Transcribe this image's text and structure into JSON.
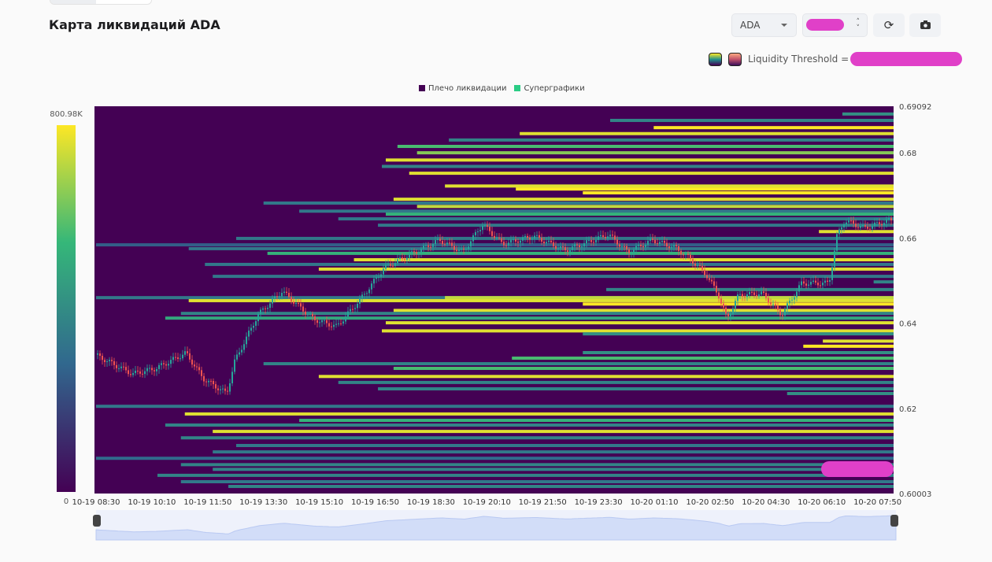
{
  "header": {
    "title": "Карта ликвидаций ADA"
  },
  "controls": {
    "symbol": "ADA",
    "refresh_icon": "refresh-icon",
    "camera_icon": "camera-icon"
  },
  "threshold": {
    "label": "Liquidity Threshold ="
  },
  "legend": [
    {
      "label": "Плечо ликвидации",
      "color": "#440154"
    },
    {
      "label": "Суперграфики",
      "color": "#2bcc85"
    }
  ],
  "colors": {
    "background": "#440154",
    "scale": [
      "#440154",
      "#31688e",
      "#35b779",
      "#fde725"
    ],
    "up": "#26a69a",
    "down": "#ef5350"
  },
  "chart_data": {
    "type": "heatmap",
    "title": "",
    "colorbar": {
      "min_label": "0",
      "max_label": "800.98K"
    },
    "ylim": [
      0.60003,
      0.69092
    ],
    "yticks": [
      "0.69092",
      "0.68",
      "0.66",
      "0.64",
      "0.62",
      "0.60003"
    ],
    "xticks": [
      "10-19 08:30",
      "10-19 10:10",
      "10-19 11:50",
      "10-19 13:30",
      "10-19 15:10",
      "10-19 16:50",
      "10-19 18:30",
      "10-19 20:10",
      "10-19 21:50",
      "10-19 23:30",
      "10-20 01:10",
      "10-20 02:50",
      "10-20 04:30",
      "10-20 06:10",
      "10-20 07:50"
    ],
    "liquidation_levels": [
      [
        0.6891,
        "10-20 06:47",
        0.5
      ],
      [
        0.6876,
        "10-19 23:51",
        0.45
      ],
      [
        0.6859,
        "10-20 01:09",
        1
      ],
      [
        0.6845,
        "10-19 21:09",
        0.95
      ],
      [
        0.683,
        "10-19 19:02",
        0.45
      ],
      [
        0.6815,
        "10-19 17:30",
        0.7
      ],
      [
        0.68,
        "10-19 18:05",
        0.8
      ],
      [
        0.6783,
        "10-19 17:09",
        0.95
      ],
      [
        0.6768,
        "10-19 17:02",
        0.45
      ],
      [
        0.6752,
        "10-19 17:51",
        0.95
      ],
      [
        0.6722,
        "10-19 18:55",
        0.95
      ],
      [
        0.6715,
        "10-19 21:02",
        1
      ],
      [
        0.6706,
        "10-19 23:02",
        1
      ],
      [
        0.6691,
        "10-19 17:23",
        0.95
      ],
      [
        0.6682,
        "10-19 13:30",
        0.4
      ],
      [
        0.6674,
        "10-19 18:05",
        0.9
      ],
      [
        0.6663,
        "10-19 14:34",
        0.4
      ],
      [
        0.6656,
        "10-19 17:09",
        0.65
      ],
      [
        0.6645,
        "10-19 15:44",
        0.4
      ],
      [
        0.663,
        "10-19 16:55",
        0.4
      ],
      [
        0.6615,
        "10-20 06:05",
        0.95
      ],
      [
        0.6599,
        "10-19 12:41",
        0.4
      ],
      [
        0.6584,
        "10-19 08:30",
        0.3
      ],
      [
        0.6575,
        "10-19 11:16",
        0.4
      ],
      [
        0.6564,
        "10-19 13:37",
        0.65
      ],
      [
        0.6549,
        "10-19 16:12",
        0.95
      ],
      [
        0.6538,
        "10-19 11:45",
        0.4
      ],
      [
        0.6527,
        "10-19 15:09",
        0.95
      ],
      [
        0.651,
        "10-19 11:59",
        0.4
      ],
      [
        0.6497,
        "10-20 07:43",
        0.45
      ],
      [
        0.6479,
        "10-19 23:44",
        0.45
      ],
      [
        0.646,
        "10-19 08:30",
        0.4
      ],
      [
        0.646,
        "10-19 18:55",
        0.9
      ],
      [
        0.6453,
        "10-19 11:16",
        0.95
      ],
      [
        0.6445,
        "10-19 23:02",
        1
      ],
      [
        0.643,
        "10-19 17:23",
        0.95
      ],
      [
        0.6423,
        "10-19 11:02",
        0.45
      ],
      [
        0.6412,
        "10-19 10:34",
        0.6
      ],
      [
        0.6401,
        "10-19 17:09",
        0.95
      ],
      [
        0.6382,
        "10-19 17:02",
        0.95
      ],
      [
        0.6375,
        "10-19 23:02",
        0.5
      ],
      [
        0.6358,
        "10-20 06:12",
        0.95
      ],
      [
        0.6346,
        "10-20 05:37",
        1
      ],
      [
        0.6331,
        "10-19 23:02",
        0.5
      ],
      [
        0.6318,
        "10-19 20:55",
        0.7
      ],
      [
        0.6305,
        "10-19 13:30",
        0.45
      ],
      [
        0.6294,
        "10-19 17:23",
        0.7
      ],
      [
        0.6275,
        "10-19 15:09",
        0.95
      ],
      [
        0.6261,
        "10-19 15:44",
        0.45
      ],
      [
        0.6246,
        "10-19 16:55",
        0.45
      ],
      [
        0.6235,
        "10-20 05:08",
        0.5
      ],
      [
        0.6205,
        "10-19 08:30",
        0.4
      ],
      [
        0.6187,
        "10-19 11:09",
        0.95
      ],
      [
        0.6172,
        "10-19 14:34",
        0.65
      ],
      [
        0.6161,
        "10-19 10:34",
        0.45
      ],
      [
        0.6146,
        "10-19 11:59",
        0.95
      ],
      [
        0.6131,
        "10-19 11:02",
        0.45
      ],
      [
        0.6113,
        "10-19 12:41",
        0.4
      ],
      [
        0.6098,
        "10-19 11:59",
        0.4
      ],
      [
        0.6083,
        "10-19 08:30",
        0.35
      ],
      [
        0.6068,
        "10-19 11:02",
        0.45
      ],
      [
        0.6057,
        "10-19 11:59",
        0.45
      ],
      [
        0.6043,
        "10-19 10:20",
        0.45
      ],
      [
        0.6028,
        "10-19 11:02",
        0.4
      ],
      [
        0.6017,
        "10-19 12:27",
        0.45
      ]
    ],
    "price_path": [
      [
        "10-19 08:30",
        0.6327
      ],
      [
        "10-19 09:38",
        0.6281
      ],
      [
        "10-19 10:20",
        0.6294
      ],
      [
        "10-19 11:14",
        0.633
      ],
      [
        "10-19 11:45",
        0.627
      ],
      [
        "10-19 12:27",
        0.6235
      ],
      [
        "10-19 12:41",
        0.631
      ],
      [
        "10-19 13:23",
        0.642
      ],
      [
        "10-19 14:06",
        0.6475
      ],
      [
        "10-19 15:02",
        0.641
      ],
      [
        "10-19 15:44",
        0.6392
      ],
      [
        "10-19 16:27",
        0.6457
      ],
      [
        "10-19 17:09",
        0.653
      ],
      [
        "10-19 17:51",
        0.6558
      ],
      [
        "10-19 18:48",
        0.6595
      ],
      [
        "10-19 19:30",
        0.6567
      ],
      [
        "10-19 20:05",
        0.6632
      ],
      [
        "10-19 20:41",
        0.6586
      ],
      [
        "10-19 21:37",
        0.6604
      ],
      [
        "10-19 22:33",
        0.6571
      ],
      [
        "10-19 23:51",
        0.6608
      ],
      [
        "10-20 00:26",
        0.6567
      ],
      [
        "10-20 01:09",
        0.6595
      ],
      [
        "10-20 01:51",
        0.6577
      ],
      [
        "10-20 02:19",
        0.6549
      ],
      [
        "10-20 02:47",
        0.6512
      ],
      [
        "10-20 03:08",
        0.6466
      ],
      [
        "10-20 03:23",
        0.641
      ],
      [
        "10-20 03:44",
        0.6466
      ],
      [
        "10-20 04:26",
        0.647
      ],
      [
        "10-20 05:01",
        0.642
      ],
      [
        "10-20 05:37",
        0.6494
      ],
      [
        "10-20 06:26",
        0.6494
      ],
      [
        "10-20 06:40",
        0.6604
      ],
      [
        "10-20 06:54",
        0.6641
      ],
      [
        "10-20 07:29",
        0.6623
      ],
      [
        "10-20 08:12",
        0.6641
      ]
    ]
  }
}
